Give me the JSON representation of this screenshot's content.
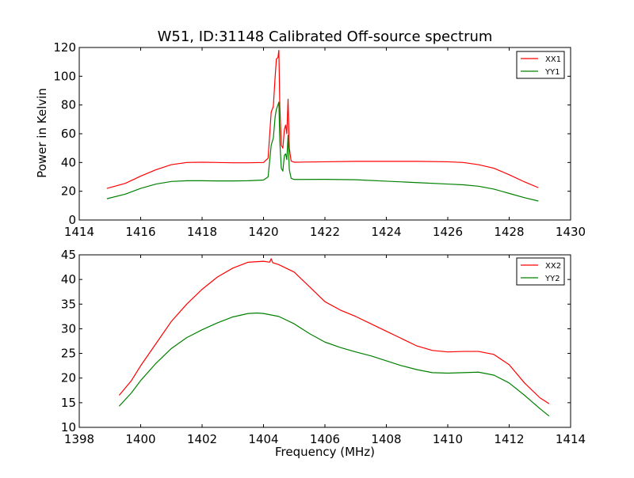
{
  "chart_data": [
    {
      "type": "line",
      "title": "W51, ID:31148 Calibrated Off-source spectrum",
      "xlabel": "",
      "ylabel": "Power in Kelvin",
      "xlim": [
        1414,
        1430
      ],
      "ylim": [
        0,
        120
      ],
      "xticks": [
        "1414",
        "1416",
        "1418",
        "1420",
        "1422",
        "1424",
        "1426",
        "1428",
        "1430"
      ],
      "yticks": [
        "0",
        "20",
        "40",
        "60",
        "80",
        "100",
        "120"
      ],
      "legend_position": "top-right",
      "series": [
        {
          "name": "XX1",
          "color": "#ff0000",
          "points": [
            [
              1414.9,
              22
            ],
            [
              1415.5,
              25.5
            ],
            [
              1416,
              30.5
            ],
            [
              1416.5,
              35
            ],
            [
              1417,
              38.5
            ],
            [
              1417.5,
              40
            ],
            [
              1418,
              40.2
            ],
            [
              1418.5,
              40
            ],
            [
              1419,
              39.8
            ],
            [
              1419.5,
              39.8
            ],
            [
              1420,
              40
            ],
            [
              1420.15,
              43
            ],
            [
              1420.25,
              75
            ],
            [
              1420.32,
              79
            ],
            [
              1420.38,
              100
            ],
            [
              1420.42,
              112
            ],
            [
              1420.47,
              113
            ],
            [
              1420.5,
              118
            ],
            [
              1420.53,
              80
            ],
            [
              1420.58,
              52
            ],
            [
              1420.63,
              50
            ],
            [
              1420.68,
              63
            ],
            [
              1420.72,
              66
            ],
            [
              1420.76,
              60
            ],
            [
              1420.8,
              84
            ],
            [
              1420.84,
              50
            ],
            [
              1420.9,
              41
            ],
            [
              1421,
              40.2
            ],
            [
              1422,
              40.5
            ],
            [
              1423,
              40.8
            ],
            [
              1424,
              40.8
            ],
            [
              1425,
              40.8
            ],
            [
              1426,
              40.5
            ],
            [
              1426.5,
              40
            ],
            [
              1427,
              38.5
            ],
            [
              1427.5,
              36
            ],
            [
              1428,
              31.5
            ],
            [
              1428.5,
              26.5
            ],
            [
              1428.95,
              22.5
            ]
          ]
        },
        {
          "name": "YY1",
          "color": "#008000",
          "points": [
            [
              1414.9,
              14.8
            ],
            [
              1415.5,
              18
            ],
            [
              1416,
              22
            ],
            [
              1416.5,
              25
            ],
            [
              1417,
              26.8
            ],
            [
              1417.5,
              27.3
            ],
            [
              1418,
              27.3
            ],
            [
              1418.5,
              27.2
            ],
            [
              1419,
              27.2
            ],
            [
              1419.5,
              27.3
            ],
            [
              1420,
              27.8
            ],
            [
              1420.15,
              30
            ],
            [
              1420.25,
              52
            ],
            [
              1420.32,
              57
            ],
            [
              1420.38,
              72
            ],
            [
              1420.42,
              77
            ],
            [
              1420.47,
              80
            ],
            [
              1420.5,
              82
            ],
            [
              1420.53,
              55
            ],
            [
              1420.58,
              36
            ],
            [
              1420.63,
              34
            ],
            [
              1420.68,
              45
            ],
            [
              1420.72,
              46
            ],
            [
              1420.76,
              42
            ],
            [
              1420.8,
              59
            ],
            [
              1420.84,
              35
            ],
            [
              1420.9,
              29
            ],
            [
              1421,
              28.2
            ],
            [
              1422,
              28.3
            ],
            [
              1423,
              28
            ],
            [
              1424,
              27
            ],
            [
              1425,
              26
            ],
            [
              1426,
              25
            ],
            [
              1426.5,
              24.5
            ],
            [
              1427,
              23.5
            ],
            [
              1427.5,
              21.5
            ],
            [
              1428,
              18.5
            ],
            [
              1428.5,
              15.5
            ],
            [
              1428.95,
              13.2
            ]
          ]
        }
      ]
    },
    {
      "type": "line",
      "title": "",
      "xlabel": "Frequency (MHz)",
      "ylabel": "",
      "xlim": [
        1398,
        1414
      ],
      "ylim": [
        10,
        45
      ],
      "xticks": [
        "1398",
        "1400",
        "1402",
        "1404",
        "1406",
        "1408",
        "1410",
        "1412",
        "1414"
      ],
      "yticks": [
        "10",
        "15",
        "20",
        "25",
        "30",
        "35",
        "40",
        "45"
      ],
      "legend_position": "top-right",
      "series": [
        {
          "name": "XX2",
          "color": "#ff0000",
          "points": [
            [
              1399.3,
              16.5
            ],
            [
              1399.7,
              19.5
            ],
            [
              1400,
              22.5
            ],
            [
              1400.5,
              27
            ],
            [
              1401,
              31.5
            ],
            [
              1401.5,
              35
            ],
            [
              1402,
              38
            ],
            [
              1402.5,
              40.5
            ],
            [
              1403,
              42.3
            ],
            [
              1403.5,
              43.5
            ],
            [
              1404,
              43.7
            ],
            [
              1404.2,
              43.5
            ],
            [
              1404.25,
              44.2
            ],
            [
              1404.3,
              43.4
            ],
            [
              1404.5,
              43
            ],
            [
              1405,
              41.5
            ],
            [
              1405.5,
              38.5
            ],
            [
              1406,
              35.5
            ],
            [
              1406.5,
              33.8
            ],
            [
              1407,
              32.5
            ],
            [
              1407.5,
              31
            ],
            [
              1408,
              29.5
            ],
            [
              1408.5,
              28
            ],
            [
              1409,
              26.5
            ],
            [
              1409.5,
              25.6
            ],
            [
              1410,
              25.3
            ],
            [
              1410.5,
              25.4
            ],
            [
              1411,
              25.4
            ],
            [
              1411.5,
              24.8
            ],
            [
              1412,
              22.7
            ],
            [
              1412.5,
              19
            ],
            [
              1413,
              16
            ],
            [
              1413.3,
              14.8
            ]
          ]
        },
        {
          "name": "YY2",
          "color": "#008000",
          "points": [
            [
              1399.3,
              14.3
            ],
            [
              1399.7,
              17
            ],
            [
              1400,
              19.5
            ],
            [
              1400.5,
              23
            ],
            [
              1401,
              26
            ],
            [
              1401.5,
              28.2
            ],
            [
              1402,
              29.8
            ],
            [
              1402.5,
              31.2
            ],
            [
              1403,
              32.4
            ],
            [
              1403.5,
              33.1
            ],
            [
              1403.8,
              33.2
            ],
            [
              1404,
              33.1
            ],
            [
              1404.5,
              32.5
            ],
            [
              1405,
              31
            ],
            [
              1405.5,
              29
            ],
            [
              1406,
              27.3
            ],
            [
              1406.5,
              26.2
            ],
            [
              1407,
              25.3
            ],
            [
              1407.5,
              24.5
            ],
            [
              1408,
              23.5
            ],
            [
              1408.5,
              22.5
            ],
            [
              1409,
              21.7
            ],
            [
              1409.5,
              21.1
            ],
            [
              1410,
              21
            ],
            [
              1410.5,
              21.1
            ],
            [
              1411,
              21.2
            ],
            [
              1411.5,
              20.6
            ],
            [
              1412,
              19
            ],
            [
              1412.5,
              16.5
            ],
            [
              1413,
              13.8
            ],
            [
              1413.3,
              12.3
            ]
          ]
        }
      ]
    }
  ]
}
